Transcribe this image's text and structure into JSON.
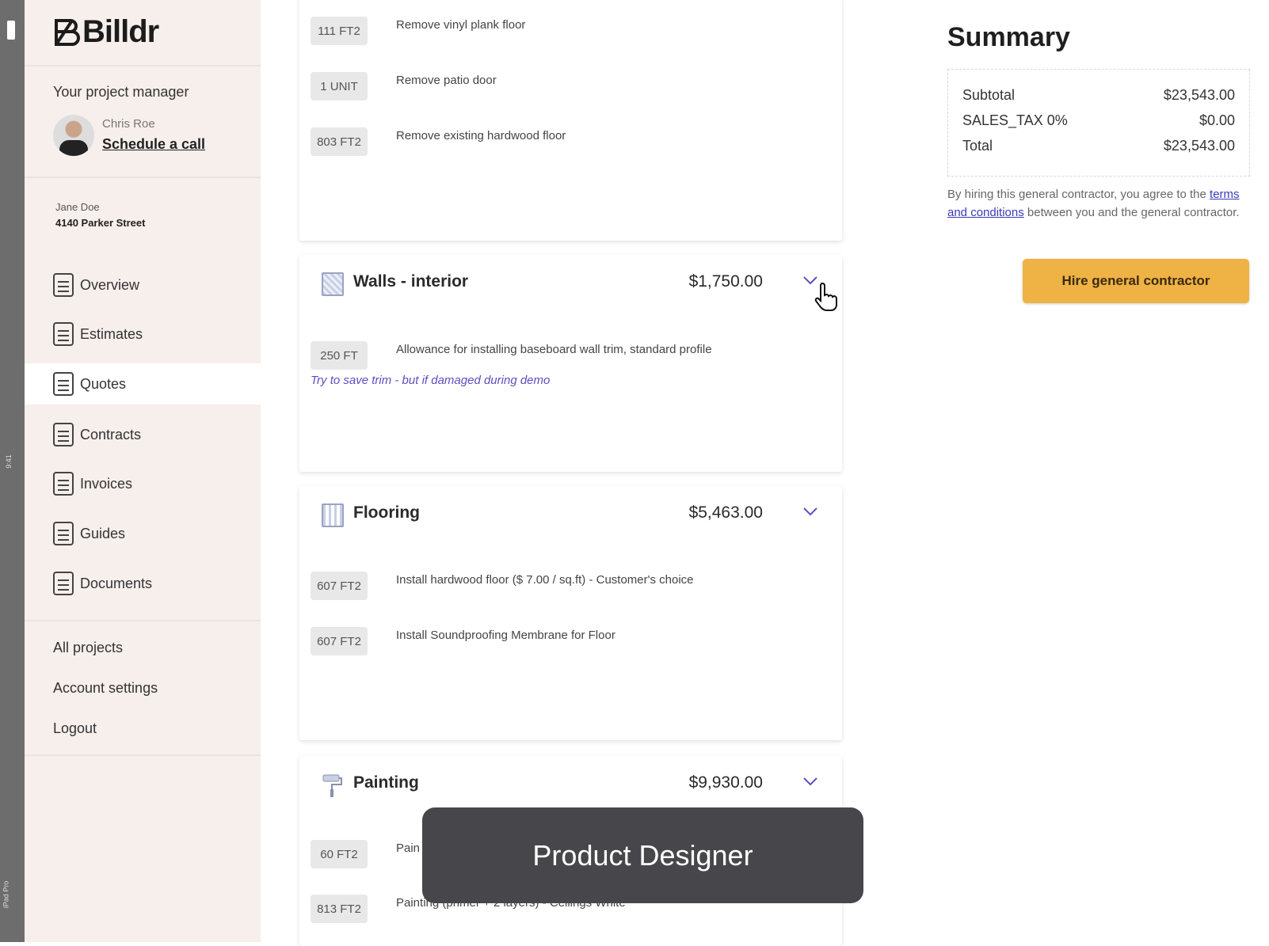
{
  "device": {
    "time": "9:41",
    "label": "iPad Pro"
  },
  "brand": {
    "name": "Billdr"
  },
  "project_manager": {
    "heading": "Your project manager",
    "name": "Chris Roe",
    "action": "Schedule a call"
  },
  "client": {
    "name": "Jane Doe",
    "address": "4140 Parker Street"
  },
  "nav": [
    {
      "label": "Overview",
      "icon": "overview-icon"
    },
    {
      "label": "Estimates",
      "icon": "clipboard-icon"
    },
    {
      "label": "Quotes",
      "icon": "document-icon",
      "active": true
    },
    {
      "label": "Contracts",
      "icon": "document-icon"
    },
    {
      "label": "Invoices",
      "icon": "document-icon"
    },
    {
      "label": "Guides",
      "icon": "guide-icon"
    },
    {
      "label": "Documents",
      "icon": "upload-document-icon"
    }
  ],
  "secondary_nav": [
    "All projects",
    "Account settings",
    "Logout"
  ],
  "sections": [
    {
      "items": [
        {
          "qty": "111 FT2",
          "desc": "Remove vinyl plank floor"
        },
        {
          "qty": "1 UNIT",
          "desc": "Remove patio door"
        },
        {
          "qty": "803 FT2",
          "desc": "Remove existing hardwood floor"
        }
      ]
    },
    {
      "title": "Walls - interior",
      "price": "$1,750.00",
      "items": [
        {
          "qty": "250 FT",
          "desc": "Allowance for installing baseboard wall trim, standard profile",
          "note": "Try to save trim - but if damaged during demo"
        }
      ]
    },
    {
      "title": "Flooring",
      "price": "$5,463.00",
      "items": [
        {
          "qty": "607 FT2",
          "desc": "Install hardwood floor ($ 7.00 / sq.ft) - Customer's choice"
        },
        {
          "qty": "607 FT2",
          "desc": "Install Soundproofing Membrane for Floor"
        }
      ]
    },
    {
      "title": "Painting",
      "price": "$9,930.00",
      "items": [
        {
          "qty": "60 FT2",
          "desc": "Pain"
        },
        {
          "qty": "813 FT2",
          "desc": "Painting (primer + 2 layers) - Ceilings White"
        }
      ]
    }
  ],
  "summary": {
    "title": "Summary",
    "rows": [
      {
        "label": "Subtotal",
        "value": "$23,543.00"
      },
      {
        "label": "SALES_TAX 0%",
        "value": "$0.00"
      },
      {
        "label": "Total",
        "value": "$23,543.00"
      }
    ],
    "terms_prefix": "By hiring this general contractor, you agree to the ",
    "terms_link": "terms and conditions",
    "terms_suffix": " between you and the general contractor.",
    "hire_button": "Hire general contractor"
  },
  "overlay_caption": "Product Designer",
  "colors": {
    "sidebar_bg": "#f7efec",
    "accent": "#5a4fc0",
    "cta": "#efb244"
  }
}
